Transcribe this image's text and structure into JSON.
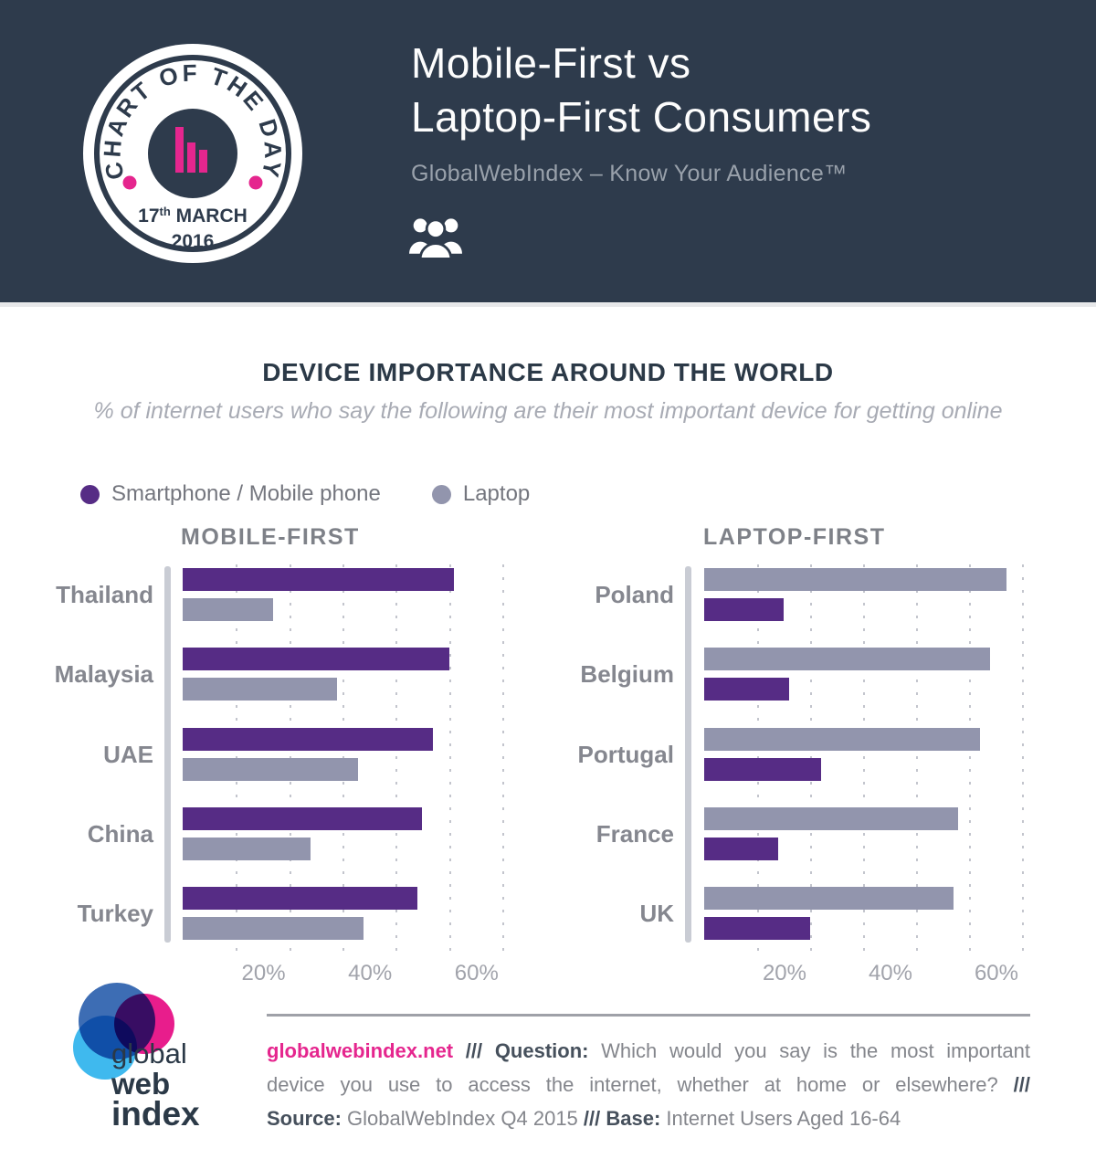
{
  "header": {
    "badge": {
      "curved_text": "CHART OF THE DAY",
      "date_day": "17",
      "date_suffix": "th",
      "date_month": " MARCH",
      "date_year": "2016"
    },
    "title_line1": "Mobile-First vs",
    "title_line2": "Laptop-First Consumers",
    "subtitle": "GlobalWebIndex – Know Your Audience™"
  },
  "section": {
    "heading": "DEVICE IMPORTANCE AROUND THE WORLD",
    "subheading": "% of internet users who say the following are their most important device for getting online"
  },
  "legend": [
    {
      "label": "Smartphone / Mobile phone",
      "color": "#562c85"
    },
    {
      "label": "Laptop",
      "color": "#9295ad"
    }
  ],
  "colors": {
    "header_bg": "#2e3b4c",
    "accent_pink": "#e5268e",
    "purple": "#562c85",
    "lavender": "#9295ad",
    "axis": "#c9ccd4",
    "heading_navy": "#2b3947"
  },
  "chart_data": [
    {
      "type": "bar",
      "title": "MOBILE-FIRST",
      "categories": [
        "Thailand",
        "Malaysia",
        "UAE",
        "China",
        "Turkey"
      ],
      "series": [
        {
          "name": "Smartphone / Mobile phone",
          "color": "#562c85",
          "values": [
            51,
            50,
            47,
            45,
            44
          ]
        },
        {
          "name": "Laptop",
          "color": "#9295ad",
          "values": [
            17,
            29,
            33,
            24,
            34
          ]
        }
      ],
      "xlim": [
        0,
        60
      ],
      "grid": {
        "step": 10,
        "max": 60
      },
      "xticks": [
        {
          "value": 20,
          "label": "20%"
        },
        {
          "value": 40,
          "label": "40%"
        },
        {
          "value": 60,
          "label": "60%"
        }
      ],
      "legend_position": "top",
      "grid_on": true
    },
    {
      "type": "bar",
      "title": "LAPTOP-FIRST",
      "categories": [
        "Poland",
        "Belgium",
        "Portugal",
        "France",
        "UK"
      ],
      "series": [
        {
          "name": "Laptop",
          "color": "#9295ad",
          "values": [
            57,
            54,
            52,
            48,
            47
          ]
        },
        {
          "name": "Smartphone / Mobile phone",
          "color": "#562c85",
          "values": [
            15,
            16,
            22,
            14,
            20
          ]
        }
      ],
      "xlim": [
        0,
        60
      ],
      "grid": {
        "step": 10,
        "max": 60
      },
      "xticks": [
        {
          "value": 20,
          "label": "20%"
        },
        {
          "value": 40,
          "label": "40%"
        },
        {
          "value": 60,
          "label": "60%"
        }
      ],
      "legend_position": "top",
      "grid_on": true
    }
  ],
  "footer": {
    "site": "globalwebindex.net",
    "sep1": " /// Question: ",
    "question_line1": "Which would you say is the most important",
    "question_line2": "device you use to access the internet, whether at home or elsewhere? ",
    "sep2": "///",
    "source_label": "Source: ",
    "source": "GlobalWebIndex Q4 2015 ",
    "base_label": "/// Base: ",
    "base": "Internet Users Aged 16-64",
    "logo": {
      "line1": "global",
      "line2": "web",
      "line3": "index"
    }
  }
}
